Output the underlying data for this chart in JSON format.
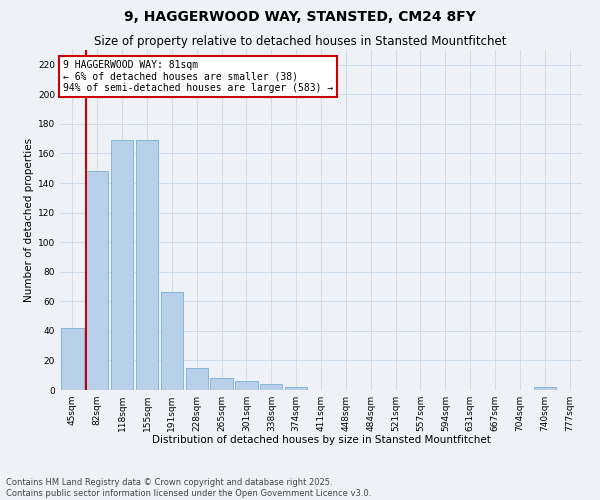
{
  "title": "9, HAGGERWOOD WAY, STANSTED, CM24 8FY",
  "subtitle": "Size of property relative to detached houses in Stansted Mountfitchet",
  "xlabel": "Distribution of detached houses by size in Stansted Mountfitchet",
  "ylabel": "Number of detached properties",
  "categories": [
    "45sqm",
    "82sqm",
    "118sqm",
    "155sqm",
    "191sqm",
    "228sqm",
    "265sqm",
    "301sqm",
    "338sqm",
    "374sqm",
    "411sqm",
    "448sqm",
    "484sqm",
    "521sqm",
    "557sqm",
    "594sqm",
    "631sqm",
    "667sqm",
    "704sqm",
    "740sqm",
    "777sqm"
  ],
  "values": [
    42,
    148,
    169,
    169,
    66,
    15,
    8,
    6,
    4,
    2,
    0,
    0,
    0,
    0,
    0,
    0,
    0,
    0,
    0,
    2,
    0
  ],
  "bar_color": "#b8d0ea",
  "bar_edge_color": "#7aafd4",
  "highlight_bar_index": 1,
  "highlight_edge_color": "#cc0000",
  "annotation_text": "9 HAGGERWOOD WAY: 81sqm\n← 6% of detached houses are smaller (38)\n94% of semi-detached houses are larger (583) →",
  "annotation_box_edge_color": "#cc0000",
  "ylim": [
    0,
    230
  ],
  "yticks": [
    0,
    20,
    40,
    60,
    80,
    100,
    120,
    140,
    160,
    180,
    200,
    220
  ],
  "grid_color": "#c8d8ea",
  "background_color": "#eef2f7",
  "footer_line1": "Contains HM Land Registry data © Crown copyright and database right 2025.",
  "footer_line2": "Contains public sector information licensed under the Open Government Licence v3.0.",
  "title_fontsize": 10,
  "subtitle_fontsize": 8.5,
  "axis_label_fontsize": 7.5,
  "tick_fontsize": 6.5,
  "annotation_fontsize": 7,
  "footer_fontsize": 6
}
